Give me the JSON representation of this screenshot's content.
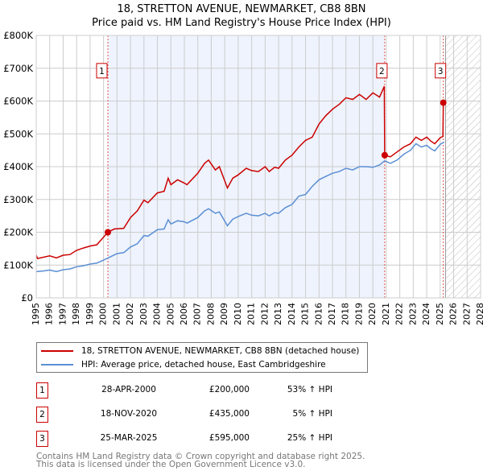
{
  "chart_data": {
    "type": "line",
    "title": "18, STRETTON AVENUE, NEWMARKET, CB8 8BN",
    "subtitle": "Price paid vs. HM Land Registry's House Price Index (HPI)",
    "xlim": [
      1995,
      2028
    ],
    "ylim": [
      0,
      800000
    ],
    "x_ticks": [
      "1995",
      "1996",
      "1997",
      "1998",
      "1999",
      "2000",
      "2001",
      "2002",
      "2003",
      "2004",
      "2005",
      "2006",
      "2007",
      "2008",
      "2009",
      "2010",
      "2011",
      "2012",
      "2013",
      "2014",
      "2015",
      "2016",
      "2017",
      "2018",
      "2019",
      "2020",
      "2021",
      "2022",
      "2023",
      "2024",
      "2025",
      "2026",
      "2027",
      "2028"
    ],
    "y_ticks": [
      {
        "v": 0,
        "label": "£0"
      },
      {
        "v": 100000,
        "label": "£100K"
      },
      {
        "v": 200000,
        "label": "£200K"
      },
      {
        "v": 300000,
        "label": "£300K"
      },
      {
        "v": 400000,
        "label": "£400K"
      },
      {
        "v": 500000,
        "label": "£500K"
      },
      {
        "v": 600000,
        "label": "£600K"
      },
      {
        "v": 700000,
        "label": "£700K"
      },
      {
        "v": 800000,
        "label": "£800K"
      }
    ],
    "grid": true,
    "shaded_period": [
      2000.32,
      2020.88
    ],
    "forecast_hatch_from": 2025.4,
    "series": [
      {
        "name": "18, STRETTON AVENUE, NEWMARKET, CB8 8BN (detached house)",
        "color": "#cc0000",
        "x": [
          1995,
          1995.1,
          1996,
          1996.5,
          1997,
          1997.5,
          1998,
          1998.5,
          1999,
          1999.5,
          2000.32,
          2000.8,
          2001.5,
          2002,
          2002.5,
          2003,
          2003.3,
          2004,
          2004.5,
          2004.8,
          2005,
          2005.5,
          2006,
          2006.2,
          2007,
          2007.5,
          2007.8,
          2008.3,
          2008.6,
          2009.2,
          2009.6,
          2010,
          2010.6,
          2011,
          2011.5,
          2012,
          2012.3,
          2012.7,
          2013,
          2013.5,
          2014,
          2014.5,
          2015,
          2015.5,
          2016,
          2016.5,
          2017,
          2017.5,
          2018,
          2018.5,
          2019,
          2019.5,
          2020,
          2020.5,
          2020.85,
          2020.88,
          2021.3,
          2021.8,
          2022.3,
          2022.8,
          2023.2,
          2023.6,
          2024,
          2024.3,
          2024.6,
          2025,
          2025.2,
          2025.23,
          2025.3
        ],
        "y": [
          130000,
          120000,
          128000,
          122000,
          130000,
          132000,
          145000,
          152000,
          158000,
          162000,
          200000,
          210000,
          212000,
          245000,
          265000,
          298000,
          290000,
          320000,
          325000,
          365000,
          345000,
          360000,
          350000,
          345000,
          380000,
          410000,
          420000,
          390000,
          400000,
          335000,
          365000,
          375000,
          395000,
          388000,
          385000,
          400000,
          385000,
          398000,
          395000,
          420000,
          435000,
          460000,
          480000,
          490000,
          530000,
          555000,
          575000,
          590000,
          610000,
          605000,
          620000,
          605000,
          625000,
          612000,
          645000,
          435000,
          430000,
          445000,
          460000,
          470000,
          490000,
          480000,
          490000,
          478000,
          470000,
          488000,
          492000,
          595000,
          595000
        ]
      },
      {
        "name": "HPI: Average price, detached house, East Cambridgeshire",
        "color": "#5b8fd4",
        "x": [
          1995,
          1995.5,
          1996,
          1996.5,
          1997,
          1997.5,
          1998,
          1998.5,
          1999,
          1999.5,
          2000,
          2000.5,
          2001,
          2001.5,
          2002,
          2002.5,
          2003,
          2003.3,
          2004,
          2004.5,
          2004.8,
          2005,
          2005.5,
          2006,
          2006.2,
          2007,
          2007.5,
          2007.8,
          2008.3,
          2008.6,
          2009.2,
          2009.6,
          2010,
          2010.6,
          2011,
          2011.5,
          2012,
          2012.3,
          2012.7,
          2013,
          2013.5,
          2014,
          2014.5,
          2015,
          2015.5,
          2016,
          2016.5,
          2017,
          2017.5,
          2018,
          2018.5,
          2019,
          2019.5,
          2020,
          2020.5,
          2020.88,
          2021.3,
          2021.8,
          2022.3,
          2022.8,
          2023.2,
          2023.6,
          2024,
          2024.3,
          2024.6,
          2025,
          2025.3
        ],
        "y": [
          80000,
          82000,
          85000,
          80000,
          86000,
          88000,
          95000,
          98000,
          103000,
          106000,
          115000,
          125000,
          135000,
          138000,
          155000,
          165000,
          190000,
          188000,
          208000,
          210000,
          238000,
          225000,
          235000,
          232000,
          228000,
          245000,
          265000,
          272000,
          258000,
          262000,
          220000,
          240000,
          248000,
          258000,
          252000,
          250000,
          258000,
          250000,
          260000,
          258000,
          275000,
          285000,
          310000,
          315000,
          340000,
          360000,
          370000,
          380000,
          385000,
          395000,
          390000,
          400000,
          400000,
          398000,
          405000,
          418000,
          410000,
          420000,
          438000,
          450000,
          470000,
          460000,
          465000,
          455000,
          448000,
          468000,
          475000
        ]
      }
    ],
    "markers": [
      {
        "label": "1",
        "x": 2000.32,
        "y": 200000
      },
      {
        "label": "2",
        "x": 2020.88,
        "y": 435000
      },
      {
        "label": "3",
        "x": 2025.23,
        "y": 595000
      }
    ],
    "marker_label_value": 690000
  },
  "legend": {
    "items": [
      {
        "label": "18, STRETTON AVENUE, NEWMARKET, CB8 8BN (detached house)",
        "color": "#cc0000"
      },
      {
        "label": "HPI: Average price, detached house, East Cambridgeshire",
        "color": "#5b8fd4"
      }
    ]
  },
  "transactions": [
    {
      "num": "1",
      "date": "28-APR-2000",
      "price": "£200,000",
      "hpi": "53% ↑ HPI"
    },
    {
      "num": "2",
      "date": "18-NOV-2020",
      "price": "£435,000",
      "hpi": "5% ↑ HPI"
    },
    {
      "num": "3",
      "date": "25-MAR-2025",
      "price": "£595,000",
      "hpi": "25% ↑ HPI"
    }
  ],
  "footer": {
    "line1": "Contains HM Land Registry data © Crown copyright and database right 2025.",
    "line2": "This data is licensed under the Open Government Licence v3.0."
  }
}
